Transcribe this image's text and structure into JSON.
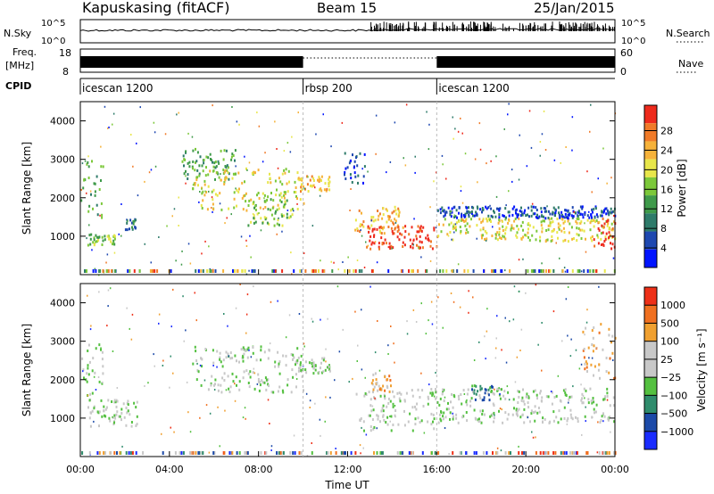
{
  "header": {
    "station": "Kapuskasing (fitACF)",
    "beam": "Beam 15",
    "date": "25/Jan/2015"
  },
  "noise_panel": {
    "left_label": "N.Sky",
    "left_ticks": [
      "10^5",
      "10^0"
    ],
    "right_ticks": [
      "10^5",
      "10^0"
    ],
    "right_label": "N.Search"
  },
  "freq_panel": {
    "left_label_top": "Freq.",
    "left_label_bottom": "[MHz]",
    "left_ticks": [
      "18",
      "8"
    ],
    "right_ticks": [
      "60",
      "0"
    ],
    "right_label": "Nave"
  },
  "cpid_panel": {
    "label": "CPID",
    "segments": [
      {
        "name": "icescan 1200",
        "start_hour": 0,
        "end_hour": 10
      },
      {
        "name": "rbsp 200",
        "start_hour": 10,
        "end_hour": 16
      },
      {
        "name": "icescan 1200",
        "start_hour": 16,
        "end_hour": 24
      }
    ]
  },
  "chart_data": [
    {
      "type": "heatmap",
      "quantity": "power",
      "ylabel": "Slant Range [km]",
      "ylim": [
        0,
        4500
      ],
      "xlim": [
        0,
        24
      ],
      "yticks": [
        "1000",
        "2000",
        "3000",
        "4000"
      ],
      "colorbar": {
        "label": "Power [dB]",
        "ticks": [
          "4",
          "8",
          "12",
          "16",
          "20",
          "24",
          "28"
        ],
        "colors": [
          "#0014ff",
          "#1e48b0",
          "#2e7b6a",
          "#3f9a4a",
          "#7cc83a",
          "#e8e64a",
          "#f6b23a",
          "#f07a28",
          "#ee2a1c"
        ]
      },
      "regions": [
        {
          "t0": 0.0,
          "t1": 1.0,
          "r0": 1500,
          "r1": 3000,
          "level": 3
        },
        {
          "t0": 0.3,
          "t1": 1.6,
          "r0": 800,
          "r1": 1100,
          "level": 4
        },
        {
          "t0": 2.0,
          "t1": 2.6,
          "r0": 1200,
          "r1": 1500,
          "level": 2
        },
        {
          "t0": 4.5,
          "t1": 7.0,
          "r0": 2500,
          "r1": 3300,
          "level": 3
        },
        {
          "t0": 5.0,
          "t1": 10.0,
          "r0": 1700,
          "r1": 2800,
          "level": 5
        },
        {
          "t0": 7.5,
          "t1": 9.5,
          "r0": 1300,
          "r1": 2000,
          "level": 4
        },
        {
          "t0": 9.7,
          "t1": 11.2,
          "r0": 2200,
          "r1": 2600,
          "level": 6
        },
        {
          "t0": 11.8,
          "t1": 12.8,
          "r0": 2400,
          "r1": 3200,
          "level": 1
        },
        {
          "t0": 12.3,
          "t1": 14.5,
          "r0": 1100,
          "r1": 1800,
          "level": 6
        },
        {
          "t0": 12.8,
          "t1": 16.0,
          "r0": 700,
          "r1": 1300,
          "level": 8
        },
        {
          "t0": 16.0,
          "t1": 24.0,
          "r0": 900,
          "r1": 1500,
          "level": 5
        },
        {
          "t0": 16.0,
          "t1": 24.0,
          "r0": 1500,
          "r1": 1800,
          "level": 1
        },
        {
          "t0": 23.0,
          "t1": 24.0,
          "r0": 700,
          "r1": 1500,
          "level": 8
        }
      ]
    },
    {
      "type": "heatmap",
      "quantity": "velocity",
      "ylabel": "Slant Range [km]",
      "xlabel": "Time UT",
      "ylim": [
        0,
        4500
      ],
      "xlim": [
        0,
        24
      ],
      "xticks": [
        "00:00",
        "04:00",
        "08:00",
        "12:00",
        "16:00",
        "20:00",
        "00:00"
      ],
      "yticks": [
        "1000",
        "2000",
        "3000",
        "4000"
      ],
      "colorbar": {
        "label": "Velocity [m s⁻¹]",
        "ticks": [
          "1000",
          "500",
          "100",
          "25",
          "−25",
          "−100",
          "−500",
          "−1000"
        ],
        "colors": [
          "#1a2cff",
          "#1c4aa8",
          "#2f8c6c",
          "#54c040",
          "#c8c8c8",
          "#c8c8c8",
          "#f0a030",
          "#f07020",
          "#ee3018"
        ]
      },
      "regions": [
        {
          "t0": 0.0,
          "t1": 1.0,
          "r0": 1500,
          "r1": 3000,
          "level": 4
        },
        {
          "t0": 0.3,
          "t1": 2.6,
          "r0": 800,
          "r1": 1500,
          "level": 4
        },
        {
          "t0": 5.0,
          "t1": 10.0,
          "r0": 1700,
          "r1": 2900,
          "level": 4
        },
        {
          "t0": 9.7,
          "t1": 11.2,
          "r0": 2200,
          "r1": 2600,
          "level": 4
        },
        {
          "t0": 12.3,
          "t1": 16.0,
          "r0": 700,
          "r1": 1800,
          "level": 4
        },
        {
          "t0": 16.0,
          "t1": 24.0,
          "r0": 900,
          "r1": 1800,
          "level": 4
        },
        {
          "t0": 13.0,
          "t1": 14.0,
          "r0": 1700,
          "r1": 2200,
          "level": 6
        },
        {
          "t0": 17.5,
          "t1": 18.5,
          "r0": 1500,
          "r1": 1900,
          "level": 2
        },
        {
          "t0": 22.5,
          "t1": 24.0,
          "r0": 2000,
          "r1": 3600,
          "level": 6
        }
      ]
    }
  ]
}
